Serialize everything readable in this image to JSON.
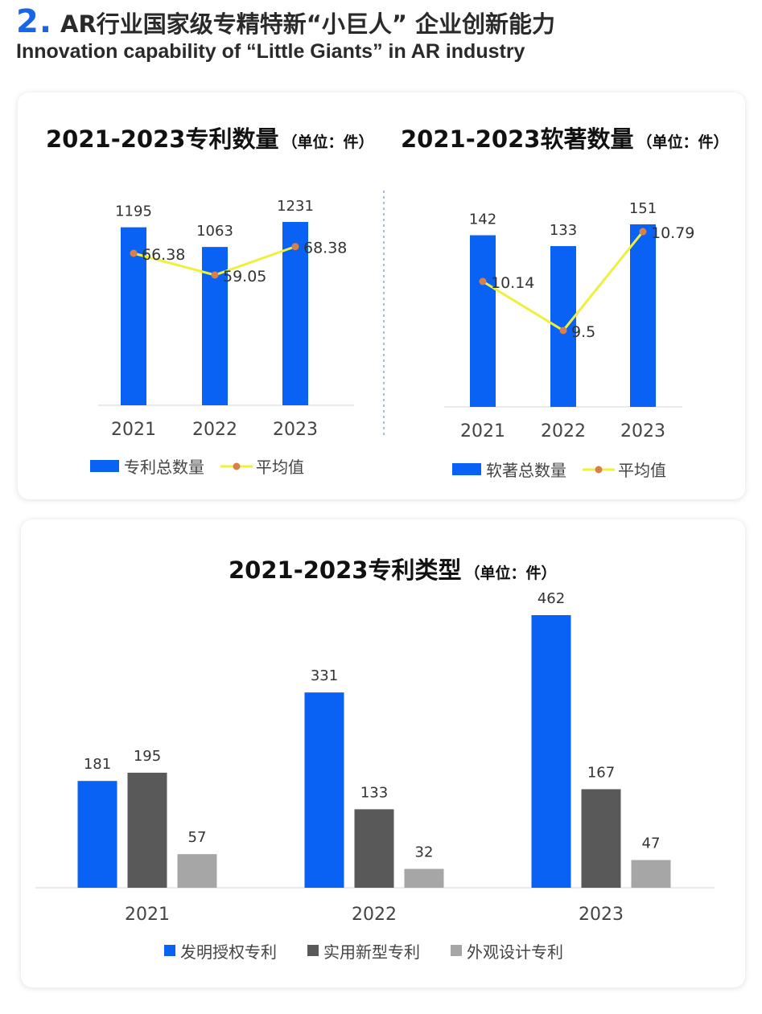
{
  "header": {
    "number": "2.",
    "title": "AR行业国家级专精特新“小巨人” 企业创新能力",
    "subtitle": "Innovation capability of “Little Giants” in AR industry"
  },
  "colors": {
    "accent": "#1766e8",
    "bar_blue": "#0a62f5",
    "bar_dark": "#595959",
    "bar_gray": "#a6a6a6",
    "line_yellow": "#eef03c",
    "marker_orange": "#d9804a"
  },
  "chart_data": [
    {
      "type": "bar",
      "title": "2021-2023专利数量",
      "unit_note": "（单位：件）",
      "categories": [
        "2021",
        "2022",
        "2023"
      ],
      "series": [
        {
          "name": "专利总数量",
          "kind": "bar",
          "values": [
            1195,
            1063,
            1231
          ],
          "labels": [
            "1195",
            "1063",
            "1231"
          ]
        },
        {
          "name": "平均值",
          "kind": "line",
          "values": [
            66.38,
            59.05,
            68.38
          ],
          "labels": [
            "66.38",
            "59.05",
            "68.38"
          ]
        }
      ],
      "legend": "bottom"
    },
    {
      "type": "bar",
      "title": "2021-2023软著数量",
      "unit_note": "（单位：件）",
      "categories": [
        "2021",
        "2022",
        "2023"
      ],
      "series": [
        {
          "name": "软著总数量",
          "kind": "bar",
          "values": [
            142,
            133,
            151
          ],
          "labels": [
            "142",
            "133",
            "151"
          ]
        },
        {
          "name": "平均值",
          "kind": "line",
          "values": [
            10.14,
            9.5,
            10.79
          ],
          "labels": [
            "10.14",
            "9.5",
            "10.79"
          ]
        }
      ],
      "legend": "bottom"
    },
    {
      "type": "bar",
      "title": "2021-2023专利类型",
      "unit_note": "（单位：件）",
      "categories": [
        "2021",
        "2022",
        "2023"
      ],
      "series": [
        {
          "name": "发明授权专利",
          "values": [
            181,
            331,
            462
          ],
          "labels": [
            "181",
            "331",
            "462"
          ]
        },
        {
          "name": "实用新型专利",
          "values": [
            195,
            133,
            167
          ],
          "labels": [
            "195",
            "133",
            "167"
          ]
        },
        {
          "name": "外观设计专利",
          "values": [
            57,
            32,
            47
          ],
          "labels": [
            "57",
            "32",
            "47"
          ]
        }
      ],
      "legend": "bottom"
    }
  ]
}
